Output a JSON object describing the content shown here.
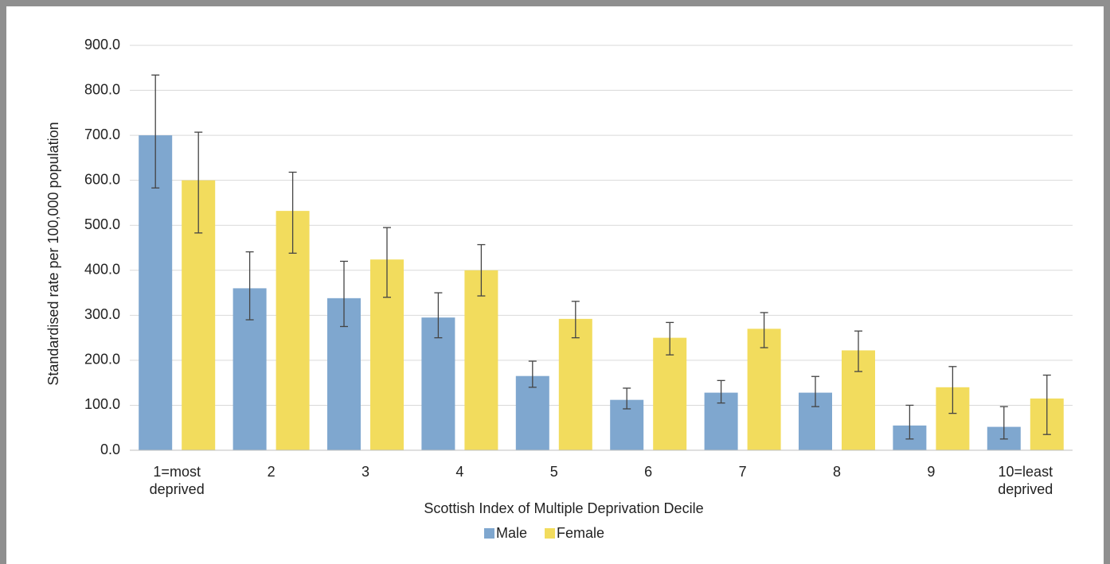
{
  "chart_data": {
    "type": "bar",
    "y_label": "Standardised rate per 100,000 population",
    "x_label": "Scottish Index of Multiple Deprivation  Decile",
    "categories": [
      "1=most deprived",
      "2",
      "3",
      "4",
      "5",
      "6",
      "7",
      "8",
      "9",
      "10=least deprived"
    ],
    "series": [
      {
        "name": "Male",
        "color": "#7fa7cf",
        "values": [
          700,
          360,
          338,
          295,
          165,
          112,
          128,
          128,
          55,
          52
        ],
        "lower": [
          583,
          290,
          275,
          250,
          140,
          92,
          105,
          97,
          25,
          25
        ],
        "upper": [
          834,
          441,
          420,
          350,
          198,
          138,
          155,
          164,
          100,
          97
        ]
      },
      {
        "name": "Female",
        "color": "#f2dc5d",
        "values": [
          600,
          532,
          424,
          400,
          292,
          250,
          270,
          222,
          140,
          115
        ],
        "lower": [
          483,
          438,
          340,
          343,
          250,
          212,
          228,
          175,
          82,
          35
        ],
        "upper": [
          707,
          618,
          495,
          457,
          331,
          284,
          306,
          265,
          186,
          167
        ]
      }
    ],
    "ylim": [
      0,
      900
    ],
    "yticks": [
      {
        "value": 0,
        "label": "0.0"
      },
      {
        "value": 100,
        "label": "100.0"
      },
      {
        "value": 200,
        "label": "200.0"
      },
      {
        "value": 300,
        "label": "300.0"
      },
      {
        "value": 400,
        "label": "400.0"
      },
      {
        "value": 500,
        "label": "500.0"
      },
      {
        "value": 600,
        "label": "600.0"
      },
      {
        "value": 700,
        "label": "700.0"
      },
      {
        "value": 800,
        "label": "800.0"
      },
      {
        "value": 900,
        "label": "900.0"
      }
    ],
    "grid": true,
    "legend": "bottom"
  }
}
